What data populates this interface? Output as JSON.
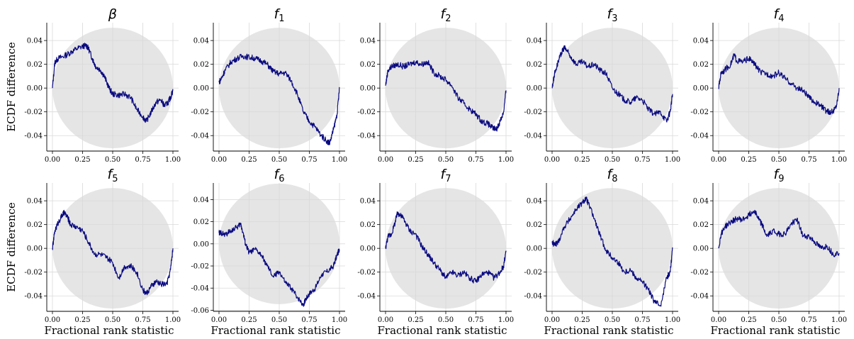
{
  "chart_data": [
    {
      "type": "line",
      "title_base": "β",
      "title_sub": "",
      "ylabel": "ECDF difference",
      "xlabel": "",
      "xlim": [
        0,
        1
      ],
      "ylim": [
        -0.053,
        0.055
      ],
      "xticks": [
        "0.00",
        "0.25",
        "0.50",
        "0.75",
        "1.00"
      ],
      "yticks": [
        "0.04",
        "0.02",
        "0.00",
        "-0.02",
        "-0.04"
      ],
      "series": [
        {
          "x": [
            0,
            0.02,
            0.05,
            0.1,
            0.15,
            0.2,
            0.25,
            0.28,
            0.3,
            0.33,
            0.36,
            0.4,
            0.43,
            0.47,
            0.5,
            0.55,
            0.6,
            0.65,
            0.7,
            0.75,
            0.78,
            0.82,
            0.86,
            0.9,
            0.93,
            0.96,
            0.98,
            1.0
          ],
          "y": [
            0.0,
            0.022,
            0.025,
            0.027,
            0.03,
            0.033,
            0.035,
            0.036,
            0.033,
            0.025,
            0.018,
            0.015,
            0.01,
            0.0,
            -0.005,
            -0.006,
            -0.005,
            -0.008,
            -0.018,
            -0.024,
            -0.028,
            -0.02,
            -0.012,
            -0.01,
            -0.015,
            -0.012,
            -0.008,
            -0.002
          ]
        }
      ]
    },
    {
      "type": "line",
      "title_base": "f",
      "title_sub": "1",
      "ylabel": "",
      "xlabel": "",
      "xlim": [
        0,
        1
      ],
      "ylim": [
        -0.053,
        0.055
      ],
      "xticks": [
        "0.00",
        "0.25",
        "0.50",
        "0.75",
        "1.00"
      ],
      "yticks": [
        "0.04",
        "0.02",
        "0.00",
        "-0.02",
        "-0.04"
      ],
      "series": [
        {
          "x": [
            0,
            0.02,
            0.05,
            0.1,
            0.15,
            0.2,
            0.25,
            0.3,
            0.35,
            0.4,
            0.45,
            0.5,
            0.55,
            0.6,
            0.65,
            0.7,
            0.75,
            0.8,
            0.85,
            0.9,
            0.92,
            0.95,
            0.98,
            1.0
          ],
          "y": [
            0.005,
            0.008,
            0.015,
            0.022,
            0.025,
            0.027,
            0.026,
            0.025,
            0.023,
            0.02,
            0.014,
            0.012,
            0.013,
            0.006,
            -0.005,
            -0.02,
            -0.028,
            -0.033,
            -0.04,
            -0.045,
            -0.046,
            -0.035,
            -0.022,
            0.0
          ]
        }
      ]
    },
    {
      "type": "line",
      "title_base": "f",
      "title_sub": "2",
      "ylabel": "",
      "xlabel": "",
      "xlim": [
        0,
        1
      ],
      "ylim": [
        -0.053,
        0.055
      ],
      "xticks": [
        "0.00",
        "0.25",
        "0.50",
        "0.75",
        "1.00"
      ],
      "yticks": [
        "0.04",
        "0.02",
        "0.00",
        "-0.02",
        "-0.04"
      ],
      "series": [
        {
          "x": [
            0,
            0.02,
            0.05,
            0.1,
            0.15,
            0.2,
            0.25,
            0.3,
            0.35,
            0.4,
            0.45,
            0.5,
            0.55,
            0.6,
            0.65,
            0.7,
            0.75,
            0.8,
            0.85,
            0.88,
            0.92,
            0.95,
            0.98,
            1.0
          ],
          "y": [
            0.002,
            0.015,
            0.018,
            0.02,
            0.018,
            0.02,
            0.022,
            0.02,
            0.022,
            0.013,
            0.01,
            0.007,
            0.002,
            -0.008,
            -0.013,
            -0.018,
            -0.022,
            -0.028,
            -0.03,
            -0.033,
            -0.035,
            -0.028,
            -0.02,
            -0.002
          ]
        }
      ]
    },
    {
      "type": "line",
      "title_base": "f",
      "title_sub": "3",
      "ylabel": "",
      "xlabel": "",
      "xlim": [
        0,
        1
      ],
      "ylim": [
        -0.053,
        0.055
      ],
      "xticks": [
        "0.00",
        "0.25",
        "0.50",
        "0.75",
        "1.00"
      ],
      "yticks": [
        "0.04",
        "0.02",
        "0.00",
        "-0.02",
        "-0.04"
      ],
      "series": [
        {
          "x": [
            0,
            0.02,
            0.05,
            0.08,
            0.1,
            0.12,
            0.15,
            0.2,
            0.25,
            0.3,
            0.35,
            0.4,
            0.45,
            0.5,
            0.55,
            0.6,
            0.65,
            0.7,
            0.75,
            0.8,
            0.85,
            0.9,
            0.95,
            0.98,
            1.0
          ],
          "y": [
            0.0,
            0.012,
            0.022,
            0.03,
            0.034,
            0.032,
            0.027,
            0.02,
            0.022,
            0.018,
            0.02,
            0.015,
            0.012,
            0.0,
            -0.005,
            -0.01,
            -0.012,
            -0.008,
            -0.01,
            -0.018,
            -0.022,
            -0.02,
            -0.028,
            -0.02,
            -0.005
          ]
        }
      ]
    },
    {
      "type": "line",
      "title_base": "f",
      "title_sub": "4",
      "ylabel": "",
      "xlabel": "",
      "xlim": [
        0,
        1
      ],
      "ylim": [
        -0.053,
        0.055
      ],
      "xticks": [
        "0.00",
        "0.25",
        "0.50",
        "0.75",
        "1.00"
      ],
      "yticks": [
        "0.04",
        "0.02",
        "0.00",
        "-0.02",
        "-0.04"
      ],
      "series": [
        {
          "x": [
            0,
            0.02,
            0.05,
            0.1,
            0.13,
            0.15,
            0.2,
            0.25,
            0.3,
            0.35,
            0.4,
            0.45,
            0.5,
            0.55,
            0.6,
            0.65,
            0.7,
            0.75,
            0.8,
            0.85,
            0.9,
            0.95,
            0.98,
            1.0
          ],
          "y": [
            0.0,
            0.013,
            0.015,
            0.02,
            0.028,
            0.023,
            0.022,
            0.025,
            0.02,
            0.013,
            0.012,
            0.01,
            0.013,
            0.008,
            0.004,
            0.0,
            -0.002,
            -0.008,
            -0.012,
            -0.015,
            -0.02,
            -0.02,
            -0.014,
            0.0
          ]
        }
      ]
    },
    {
      "type": "line",
      "title_base": "f",
      "title_sub": "5",
      "ylabel": "ECDF difference",
      "xlabel": "Fractional rank statistic",
      "xlim": [
        0,
        1
      ],
      "ylim": [
        -0.053,
        0.055
      ],
      "xticks": [
        "0.00",
        "0.25",
        "0.50",
        "0.75",
        "1.00"
      ],
      "yticks": [
        "0.04",
        "0.02",
        "0.00",
        "-0.02",
        "-0.04"
      ],
      "series": [
        {
          "x": [
            0,
            0.02,
            0.05,
            0.08,
            0.1,
            0.13,
            0.15,
            0.2,
            0.25,
            0.3,
            0.35,
            0.4,
            0.45,
            0.5,
            0.55,
            0.6,
            0.65,
            0.7,
            0.75,
            0.78,
            0.82,
            0.86,
            0.9,
            0.95,
            0.98,
            1.0
          ],
          "y": [
            0.0,
            0.015,
            0.022,
            0.028,
            0.03,
            0.025,
            0.02,
            0.018,
            0.015,
            0.005,
            -0.005,
            -0.005,
            -0.008,
            -0.012,
            -0.025,
            -0.015,
            -0.015,
            -0.02,
            -0.035,
            -0.038,
            -0.032,
            -0.028,
            -0.03,
            -0.03,
            -0.018,
            0.0
          ]
        }
      ]
    },
    {
      "type": "line",
      "title_base": "f",
      "title_sub": "6",
      "ylabel": "",
      "xlabel": "Fractional rank statistic",
      "xlim": [
        0,
        1
      ],
      "ylim": [
        -0.061,
        0.055
      ],
      "xticks": [
        "0.00",
        "0.25",
        "0.50",
        "0.75",
        "1.00"
      ],
      "yticks": [
        "0.04",
        "0.02",
        "0.00",
        "-0.02",
        "-0.04",
        "-0.06"
      ],
      "series": [
        {
          "x": [
            0,
            0.02,
            0.05,
            0.1,
            0.15,
            0.18,
            0.2,
            0.22,
            0.25,
            0.3,
            0.35,
            0.4,
            0.45,
            0.5,
            0.55,
            0.6,
            0.65,
            0.7,
            0.72,
            0.75,
            0.8,
            0.85,
            0.9,
            0.95,
            0.98,
            1.0
          ],
          "y": [
            0.01,
            0.01,
            0.008,
            0.012,
            0.015,
            0.018,
            0.01,
            0.0,
            -0.008,
            -0.005,
            -0.01,
            -0.02,
            -0.03,
            -0.025,
            -0.035,
            -0.04,
            -0.048,
            -0.055,
            -0.05,
            -0.045,
            -0.04,
            -0.028,
            -0.025,
            -0.02,
            -0.01,
            -0.005
          ]
        }
      ]
    },
    {
      "type": "line",
      "title_base": "f",
      "title_sub": "7",
      "ylabel": "",
      "xlabel": "Fractional rank statistic",
      "xlim": [
        0,
        1
      ],
      "ylim": [
        -0.053,
        0.055
      ],
      "xticks": [
        "0.00",
        "0.25",
        "0.50",
        "0.75",
        "1.00"
      ],
      "yticks": [
        "0.04",
        "0.02",
        "0.00",
        "-0.02",
        "-0.04"
      ],
      "series": [
        {
          "x": [
            0,
            0.02,
            0.05,
            0.08,
            0.1,
            0.12,
            0.15,
            0.2,
            0.25,
            0.3,
            0.35,
            0.4,
            0.45,
            0.5,
            0.55,
            0.6,
            0.65,
            0.7,
            0.75,
            0.8,
            0.85,
            0.9,
            0.95,
            0.98,
            1.0
          ],
          "y": [
            0.0,
            0.01,
            0.012,
            0.022,
            0.03,
            0.028,
            0.025,
            0.015,
            0.012,
            0.002,
            -0.005,
            -0.012,
            -0.018,
            -0.025,
            -0.02,
            -0.023,
            -0.02,
            -0.025,
            -0.028,
            -0.022,
            -0.02,
            -0.025,
            -0.02,
            -0.015,
            -0.002
          ]
        }
      ]
    },
    {
      "type": "line",
      "title_base": "f",
      "title_sub": "8",
      "ylabel": "",
      "xlabel": "Fractional rank statistic",
      "xlim": [
        0,
        1
      ],
      "ylim": [
        -0.053,
        0.055
      ],
      "xticks": [
        "0.00",
        "0.25",
        "0.50",
        "0.75",
        "1.00"
      ],
      "yticks": [
        "0.04",
        "0.02",
        "0.00",
        "-0.02",
        "-0.04"
      ],
      "series": [
        {
          "x": [
            0,
            0.02,
            0.05,
            0.1,
            0.15,
            0.2,
            0.25,
            0.28,
            0.3,
            0.35,
            0.4,
            0.45,
            0.5,
            0.55,
            0.6,
            0.65,
            0.7,
            0.75,
            0.8,
            0.85,
            0.9,
            0.95,
            0.98,
            1.0
          ],
          "y": [
            0.005,
            0.003,
            0.005,
            0.018,
            0.025,
            0.033,
            0.038,
            0.042,
            0.038,
            0.025,
            0.01,
            -0.002,
            -0.008,
            -0.012,
            -0.02,
            -0.018,
            -0.025,
            -0.028,
            -0.035,
            -0.045,
            -0.048,
            -0.025,
            -0.02,
            0.0
          ]
        }
      ]
    },
    {
      "type": "line",
      "title_base": "f",
      "title_sub": "9",
      "ylabel": "",
      "xlabel": "Fractional rank statistic",
      "xlim": [
        0,
        1
      ],
      "ylim": [
        -0.053,
        0.055
      ],
      "xticks": [
        "0.00",
        "0.25",
        "0.50",
        "0.75",
        "1.00"
      ],
      "yticks": [
        "0.04",
        "0.02",
        "0.00",
        "-0.02",
        "-0.04"
      ],
      "series": [
        {
          "x": [
            0,
            0.02,
            0.05,
            0.1,
            0.15,
            0.2,
            0.25,
            0.3,
            0.33,
            0.36,
            0.4,
            0.45,
            0.5,
            0.55,
            0.6,
            0.65,
            0.7,
            0.75,
            0.8,
            0.85,
            0.9,
            0.95,
            1.0
          ],
          "y": [
            0.0,
            0.012,
            0.018,
            0.022,
            0.025,
            0.024,
            0.028,
            0.032,
            0.025,
            0.02,
            0.01,
            0.015,
            0.012,
            0.012,
            0.02,
            0.025,
            0.01,
            0.01,
            0.005,
            0.0,
            0.002,
            -0.005,
            -0.004
          ]
        }
      ]
    }
  ]
}
